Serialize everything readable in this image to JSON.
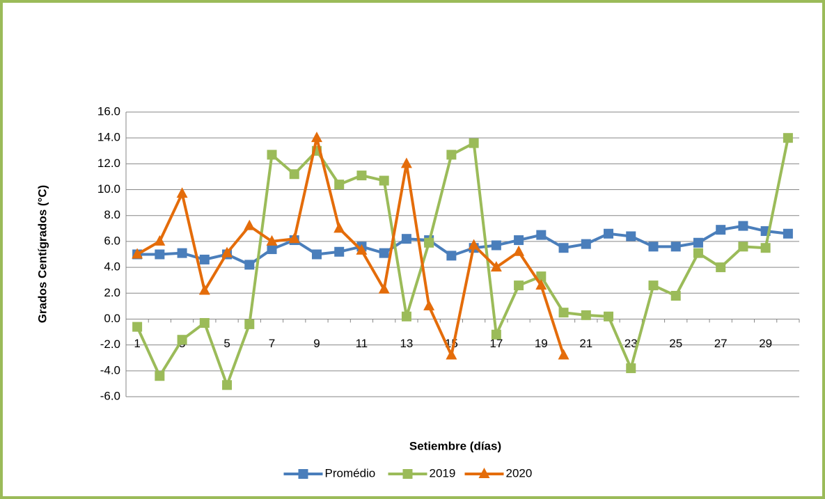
{
  "chart_data": {
    "type": "line",
    "xlabel": "Setiembre (días)",
    "ylabel": "Grados Centígrados (°C)",
    "categories": [
      "1",
      null,
      "3",
      null,
      "5",
      null,
      "7",
      null,
      "9",
      null,
      "11",
      null,
      "13",
      null,
      "15",
      null,
      "17",
      null,
      "19",
      null,
      "21",
      null,
      "23",
      null,
      "25",
      null,
      "27",
      null,
      "29",
      null
    ],
    "series": [
      {
        "name": "Promédio",
        "color": "#4a7ebb",
        "marker": "square",
        "values": [
          5.0,
          5.0,
          5.1,
          4.6,
          5.0,
          4.2,
          5.4,
          6.1,
          5.0,
          5.2,
          5.6,
          5.1,
          6.2,
          6.1,
          4.9,
          5.5,
          5.7,
          6.1,
          6.5,
          5.5,
          5.8,
          6.6,
          6.4,
          5.6,
          5.6,
          5.9,
          6.9,
          7.2,
          6.8,
          6.6
        ]
      },
      {
        "name": "2019",
        "color": "#9bbb59",
        "marker": "square",
        "values": [
          -0.6,
          -4.4,
          -1.6,
          -0.3,
          -5.1,
          -0.4,
          12.7,
          11.2,
          13.0,
          10.4,
          11.1,
          10.7,
          0.2,
          5.9,
          12.7,
          13.6,
          -1.2,
          2.6,
          3.3,
          0.5,
          0.3,
          0.2,
          -3.8,
          2.6,
          1.8,
          5.1,
          4.0,
          5.6,
          5.5,
          14.0
        ]
      },
      {
        "name": "2020",
        "color": "#e46c0a",
        "marker": "triangle",
        "values": [
          5.0,
          6.0,
          9.7,
          2.2,
          5.1,
          7.2,
          6.0,
          6.2,
          14.0,
          7.0,
          5.3,
          2.3,
          12.0,
          1.0,
          -2.8,
          5.7,
          4.0,
          5.2,
          2.6,
          -2.8,
          null,
          null,
          null,
          null,
          null,
          null,
          null,
          null,
          null,
          null
        ]
      }
    ],
    "ylim": [
      -6,
      16
    ],
    "yticks": [
      {
        "value": -6,
        "label": "-6.0"
      },
      {
        "value": -4,
        "label": "-4.0"
      },
      {
        "value": -2,
        "label": "-2.0"
      },
      {
        "value": 0,
        "label": "0.0"
      },
      {
        "value": 2,
        "label": "2.0"
      },
      {
        "value": 4,
        "label": "4.0"
      },
      {
        "value": 6,
        "label": "6.0"
      },
      {
        "value": 8,
        "label": "8.0"
      },
      {
        "value": 10,
        "label": "10.0"
      },
      {
        "value": 12,
        "label": "12.0"
      },
      {
        "value": 14,
        "label": "14.0"
      },
      {
        "value": 16,
        "label": "16.0"
      }
    ],
    "grid": true,
    "legend": "bottom"
  }
}
